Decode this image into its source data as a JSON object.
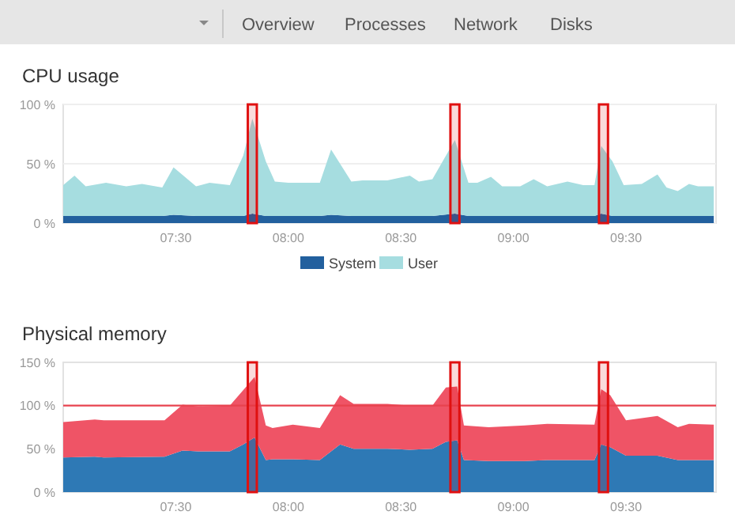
{
  "chart_data": [
    {
      "type": "other",
      "annotations": [
        "Overview",
        "Processes",
        "Network",
        "Disks"
      ]
    },
    {
      "type": "area",
      "title": "CPU usage",
      "stacked": true,
      "grid": "y",
      "legend": "bottom",
      "xlim": [
        7,
        9.9
      ],
      "ylim": [
        0,
        100
      ],
      "bands": [
        {
          "axis": "x",
          "from": 7.82,
          "to": 7.86,
          "color": "#e01010"
        },
        {
          "axis": "x",
          "from": 8.72,
          "to": 8.76,
          "color": "#e01010"
        },
        {
          "axis": "x",
          "from": 9.38,
          "to": 9.42,
          "color": "#e01010"
        }
      ],
      "xticks": [
        {
          "value": 7.5,
          "label": "07:30"
        },
        {
          "value": 8,
          "label": "08:00"
        },
        {
          "value": 8.5,
          "label": "08:30"
        },
        {
          "value": 9,
          "label": "09:00"
        },
        {
          "value": 9.5,
          "label": "09:30"
        }
      ],
      "yticks": [
        {
          "value": 0,
          "label": "0 %"
        },
        {
          "value": 50,
          "label": "50 %"
        },
        {
          "value": 100,
          "label": "100 %"
        }
      ],
      "x": [
        7.0,
        7.05,
        7.1,
        7.19,
        7.28,
        7.35,
        7.44,
        7.49,
        7.59,
        7.65,
        7.74,
        7.8,
        7.84,
        7.9,
        7.94,
        8.0,
        8.14,
        8.19,
        8.28,
        8.33,
        8.44,
        8.54,
        8.58,
        8.64,
        8.74,
        8.8,
        8.84,
        8.9,
        8.95,
        9.03,
        9.09,
        9.15,
        9.24,
        9.31,
        9.36,
        9.39,
        9.44,
        9.49,
        9.57,
        9.64,
        9.68,
        9.73,
        9.78,
        9.82,
        9.89
      ],
      "series": [
        {
          "name": "System",
          "color": "#22609e",
          "values": [
            6,
            6,
            6,
            6,
            6,
            6,
            6,
            7,
            6,
            6,
            6,
            6,
            8,
            6,
            6,
            6,
            6,
            7,
            6,
            6,
            6,
            6,
            6,
            6,
            8,
            6,
            6,
            6,
            6,
            6,
            6,
            6,
            6,
            6,
            6,
            8,
            6,
            6,
            6,
            6,
            6,
            6,
            6,
            6,
            6
          ]
        },
        {
          "name": "User",
          "color": "#a6dde0",
          "values": [
            26,
            34,
            25,
            28,
            25,
            27,
            24,
            40,
            25,
            28,
            26,
            51,
            80,
            46,
            29,
            28,
            28,
            55,
            29,
            30,
            30,
            34,
            29,
            31,
            62,
            28,
            28,
            33,
            25,
            25,
            31,
            25,
            29,
            26,
            26,
            57,
            46,
            26,
            27,
            35,
            24,
            21,
            27,
            25,
            25
          ]
        }
      ]
    },
    {
      "type": "area",
      "title": "Physical memory",
      "stacked": true,
      "xlim": [
        7,
        9.9
      ],
      "ylim": [
        0,
        150
      ],
      "xticks": [
        {
          "value": 7.5,
          "label": "07:30"
        },
        {
          "value": 8,
          "label": "08:00"
        },
        {
          "value": 8.5,
          "label": "08:30"
        },
        {
          "value": 9,
          "label": "09:00"
        },
        {
          "value": 9.5,
          "label": "09:30"
        }
      ],
      "yticks": [
        {
          "value": 0,
          "label": "0 %"
        },
        {
          "value": 50,
          "label": "50 %"
        },
        {
          "value": 100,
          "label": "100 %"
        },
        {
          "value": 150,
          "label": "150 %"
        }
      ],
      "ref_lines": [
        {
          "axis": "y",
          "value": 100,
          "color": "#e8434f"
        }
      ],
      "bands": [
        {
          "axis": "x",
          "from": 7.82,
          "to": 7.86,
          "color": "#e01010"
        },
        {
          "axis": "x",
          "from": 8.72,
          "to": 8.76,
          "color": "#e01010"
        },
        {
          "axis": "x",
          "from": 9.38,
          "to": 9.42,
          "color": "#e01010"
        }
      ],
      "x": [
        7.0,
        7.14,
        7.18,
        7.45,
        7.53,
        7.6,
        7.74,
        7.8,
        7.85,
        7.9,
        7.93,
        8.02,
        8.14,
        8.23,
        8.29,
        8.44,
        8.54,
        8.64,
        8.7,
        8.75,
        8.78,
        8.89,
        9.05,
        9.15,
        9.36,
        9.39,
        9.43,
        9.5,
        9.64,
        9.73,
        9.78,
        9.89
      ],
      "series": [
        {
          "color": "#2e79b5",
          "values": [
            40,
            41,
            40,
            41,
            48,
            47,
            47,
            55,
            63,
            37,
            38,
            38,
            37,
            55,
            50,
            50,
            49,
            50,
            58,
            60,
            37,
            36,
            36,
            37,
            37,
            55,
            52,
            42,
            42,
            37,
            37,
            37
          ]
        },
        {
          "color": "#ef5466",
          "values": [
            41,
            43,
            43,
            42,
            53,
            52,
            53,
            63,
            70,
            40,
            36,
            40,
            37,
            57,
            52,
            52,
            51,
            50,
            63,
            62,
            40,
            39,
            41,
            42,
            41,
            64,
            60,
            41,
            46,
            38,
            42,
            41
          ]
        }
      ]
    }
  ]
}
